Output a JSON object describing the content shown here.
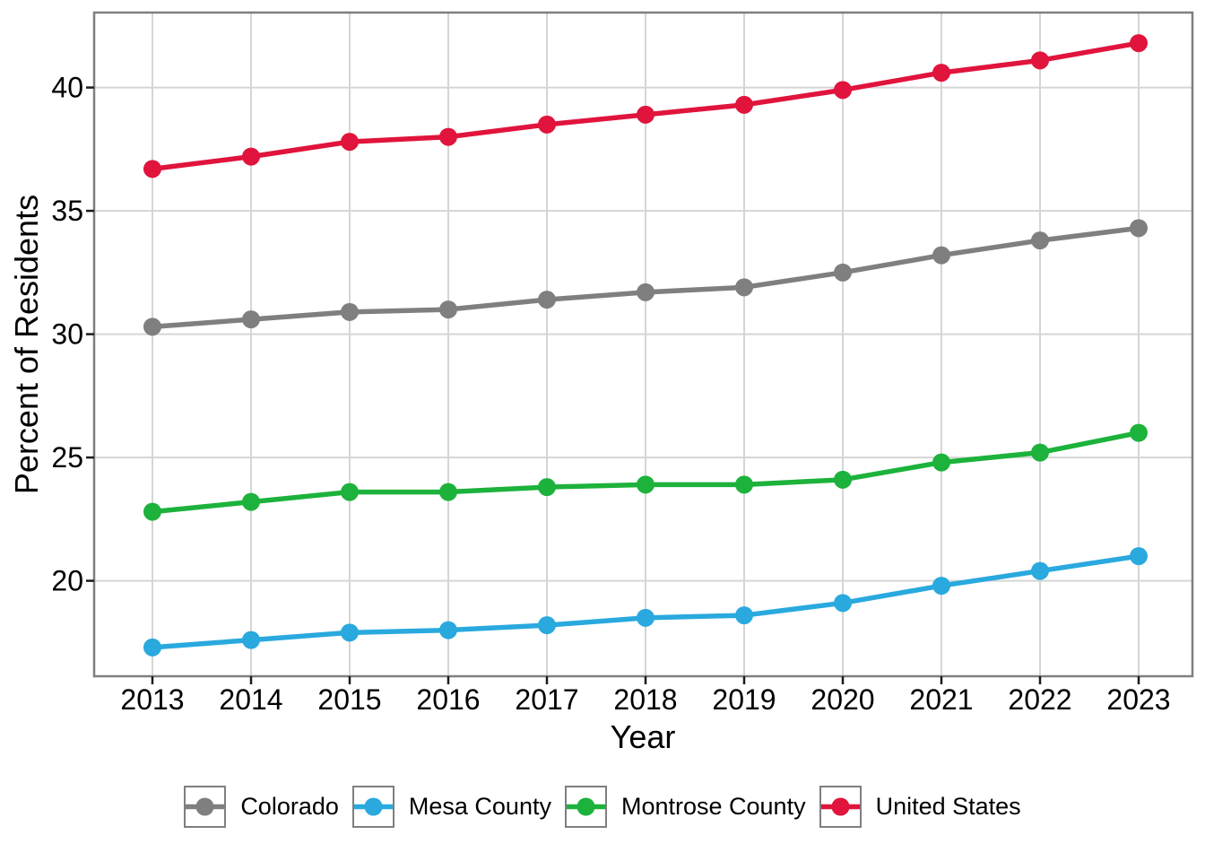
{
  "chart_data": {
    "type": "line",
    "title": "",
    "xlabel": "Year",
    "ylabel": "Percent of Residents",
    "x": [
      2013,
      2014,
      2015,
      2016,
      2017,
      2018,
      2019,
      2020,
      2021,
      2022,
      2023
    ],
    "yticks": [
      20,
      25,
      30,
      35,
      40
    ],
    "ylim": [
      16.13,
      43.04
    ],
    "grid": true,
    "legend_position": "bottom",
    "series": [
      {
        "name": "Colorado",
        "color": "#7F7F7F",
        "values": [
          30.3,
          30.6,
          30.9,
          31.0,
          31.4,
          31.7,
          31.9,
          32.5,
          33.2,
          33.8,
          34.3
        ]
      },
      {
        "name": "Mesa County",
        "color": "#29A9DE",
        "values": [
          17.3,
          17.6,
          17.9,
          18.0,
          18.2,
          18.5,
          18.6,
          19.1,
          19.8,
          20.4,
          21.0
        ]
      },
      {
        "name": "Montrose County",
        "color": "#1CB23B",
        "values": [
          22.8,
          23.2,
          23.6,
          23.6,
          23.8,
          23.9,
          23.9,
          24.1,
          24.8,
          25.2,
          26.0
        ]
      },
      {
        "name": "United States",
        "color": "#E0143C",
        "values": [
          36.7,
          37.2,
          37.8,
          38.0,
          38.5,
          38.9,
          39.3,
          39.9,
          40.6,
          41.1,
          41.8
        ]
      }
    ]
  },
  "style": {
    "grid_color": "#D5D5D5",
    "panel_border_color": "#7F7F7F",
    "tick_color": "#1A1A1A",
    "text_color": "#000000",
    "background": "#FFFFFF"
  }
}
